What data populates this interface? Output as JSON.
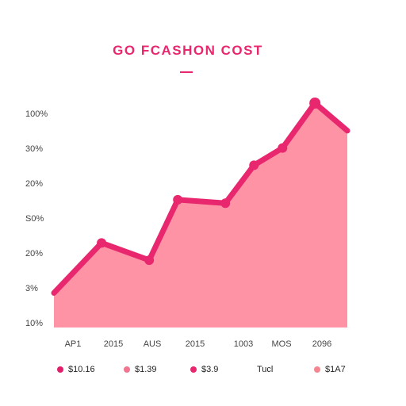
{
  "header": {
    "title": "GO FCASHON COST"
  },
  "chart_data": {
    "type": "area",
    "title": "GO FCASHON COST",
    "y_tick_labels": [
      "100%",
      "30%",
      "20%",
      "S0%",
      "20%",
      "3%",
      "10%"
    ],
    "x_tick_labels": [
      "AP1",
      "2015",
      "AUS",
      "2015",
      "1003",
      "MOS",
      "2096"
    ],
    "ylim": [
      0,
      6.5
    ],
    "grid": false,
    "series": [
      {
        "x": [
          0,
          1.25,
          2.5,
          3.25,
          4.5,
          5.25,
          6.0,
          6.85,
          7.7
        ],
        "values": [
          1.0,
          2.45,
          1.95,
          3.7,
          3.6,
          4.7,
          5.2,
          6.5,
          5.7
        ]
      }
    ],
    "xlim": [
      0,
      7.7
    ],
    "colors": {
      "line": "#e8276f",
      "area": "#ff93a6"
    },
    "legend_position": "bottom",
    "legend": [
      {
        "label": "$10.16",
        "color": "#e0206a"
      },
      {
        "label": "$1.39",
        "color": "#f07590"
      },
      {
        "label": "$3.9",
        "color": "#e8276f"
      },
      {
        "label": "Tucl",
        "color": ""
      },
      {
        "label": "$1A7",
        "color": "#f5868f"
      }
    ]
  }
}
